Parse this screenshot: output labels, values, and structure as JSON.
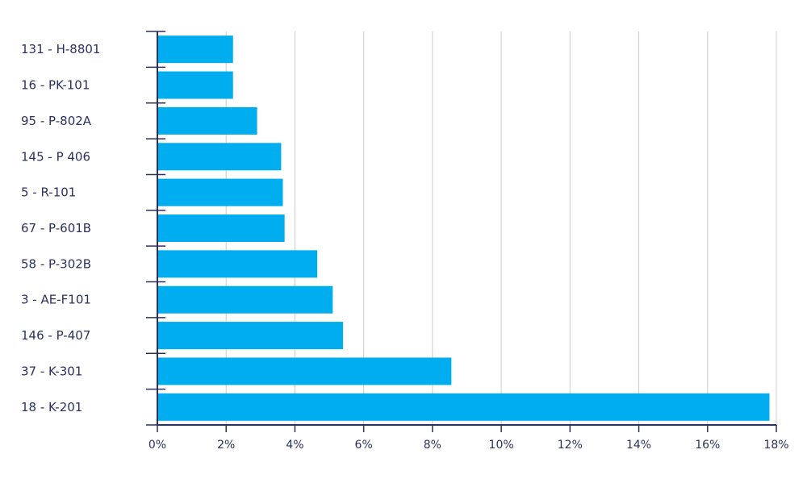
{
  "chart_data": {
    "type": "bar",
    "orientation": "horizontal",
    "categories": [
      "131 - H-8801",
      "16 - PK-101",
      "95 - P-802A",
      "145 - P 406",
      "5 - R-101",
      "67 - P-601B",
      "58 - P-302B",
      "3 - AE-F101",
      "146 - P-407",
      "37 - K-301",
      "18 - K-201"
    ],
    "values": [
      2.2,
      2.2,
      2.9,
      3.6,
      3.65,
      3.7,
      4.65,
      5.1,
      5.4,
      8.55,
      17.8
    ],
    "xlim": [
      0,
      18
    ],
    "xticks": [
      0,
      2,
      4,
      6,
      8,
      10,
      12,
      14,
      16,
      18
    ],
    "tick_suffix": "%",
    "grid": "vertical",
    "title": "",
    "xlabel": "",
    "ylabel": "",
    "colors": {
      "bar": "#00aeef",
      "axis": "#2b3160",
      "grid": "#cccccc",
      "text": "#2b3160"
    }
  }
}
